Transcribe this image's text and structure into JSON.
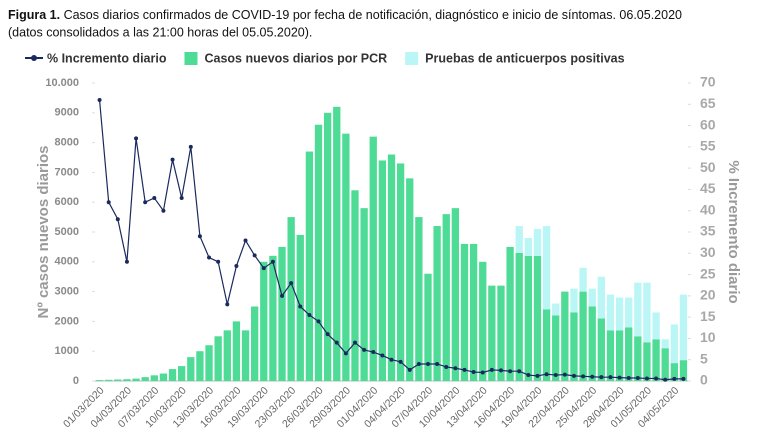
{
  "chart_data": {
    "type": "stacked_bar_line",
    "title_bold": "Figura 1.",
    "title": "Casos diarios confirmados de COVID-19 por fecha de notificación, diagnóstico e inicio de síntomas. 06.05.2020",
    "subtitle": "(datos consolidados a las 21:00 horas del 05.05.2020).",
    "y_label": "Nº casos nuevos diarios",
    "y2_label": "% Incremento diario",
    "legend": "top-left",
    "categories": [
      "01/03/2020",
      null,
      null,
      "04/03/2020",
      null,
      null,
      "07/03/2020",
      null,
      null,
      "10/03/2020",
      null,
      null,
      "13/03/2020",
      null,
      null,
      "16/03/2020",
      null,
      null,
      "19/03/2020",
      null,
      null,
      "23/03/2020",
      null,
      null,
      "26/03/2020",
      null,
      null,
      "29/03/2020",
      null,
      null,
      "01/04/2020",
      null,
      null,
      "04/04/2020",
      null,
      null,
      "07/04/2020",
      null,
      null,
      "10/04/2020",
      null,
      null,
      "13/04/2020",
      null,
      null,
      "16/04/2020",
      null,
      null,
      "19/04/2020",
      null,
      null,
      "22/04/2020",
      null,
      null,
      "25/04/2020",
      null,
      null,
      "28/04/2020",
      null,
      null,
      "01/05/2020",
      null,
      null,
      "04/05/2020",
      null
    ],
    "series": [
      {
        "name": "% Incremento diario",
        "color": "#1b2a5e",
        "axis": "y2",
        "kind": "line",
        "values": [
          66,
          42,
          38,
          28,
          57,
          42,
          43,
          40,
          52,
          43,
          55,
          34,
          29,
          28,
          18,
          27,
          33,
          29.5,
          26.5,
          28,
          20,
          23,
          17.5,
          15.5,
          14,
          11,
          9,
          6.5,
          9,
          7.3,
          6.8,
          6,
          5,
          4.5,
          2.6,
          4,
          4,
          4,
          3.3,
          3,
          2.6,
          2.1,
          2,
          2.6,
          2.5,
          2.3,
          2.3,
          1.4,
          1.2,
          1.6,
          1.4,
          1.5,
          1.2,
          1.1,
          1,
          0.9,
          0.9,
          0.8,
          0.7,
          0.7,
          0.6,
          0.6,
          0.3,
          0.5,
          0.5
        ]
      },
      {
        "name": "Casos nuevos diarios por PCR",
        "color": "#4ddb95",
        "kind": "bar",
        "values": [
          30,
          40,
          50,
          60,
          80,
          130,
          190,
          250,
          400,
          500,
          800,
          1000,
          1200,
          1500,
          1700,
          2000,
          1700,
          2500,
          4000,
          4200,
          4500,
          5500,
          4900,
          7700,
          8600,
          9000,
          9200,
          8300,
          6400,
          5800,
          8200,
          7400,
          7600,
          7300,
          6800,
          5500,
          3600,
          5200,
          5600,
          5800,
          4600,
          4600,
          4000,
          3200,
          3200,
          4500,
          4300,
          4200,
          4200,
          2400,
          2200,
          3000,
          2300,
          3000,
          2500,
          2100,
          1700,
          1700,
          1800,
          1500,
          1300,
          1400,
          1100,
          600,
          700
        ]
      },
      {
        "name": "Pruebas de anticuerpos positivas",
        "color": "#baf6f6",
        "kind": "bar",
        "values": [
          0,
          0,
          0,
          0,
          0,
          0,
          0,
          0,
          0,
          0,
          0,
          0,
          0,
          0,
          0,
          0,
          0,
          0,
          0,
          0,
          0,
          0,
          0,
          0,
          0,
          0,
          0,
          0,
          0,
          0,
          0,
          0,
          0,
          0,
          0,
          0,
          0,
          0,
          0,
          0,
          0,
          0,
          0,
          0,
          0,
          0,
          900,
          600,
          900,
          2800,
          400,
          0,
          800,
          800,
          600,
          1400,
          1200,
          1100,
          1000,
          1800,
          2000,
          900,
          300,
          1300,
          2200
        ]
      }
    ],
    "ylim": [
      0,
      10000
    ],
    "yticks": [
      0,
      1000,
      2000,
      3000,
      4000,
      5000,
      6000,
      7000,
      8000,
      9000,
      {
        "value": 10000,
        "label": "10.000"
      }
    ],
    "y2lim": [
      0,
      70
    ],
    "y2ticks": [
      0,
      5,
      10,
      15,
      20,
      25,
      30,
      35,
      40,
      45,
      50,
      55,
      60,
      65,
      70
    ]
  }
}
